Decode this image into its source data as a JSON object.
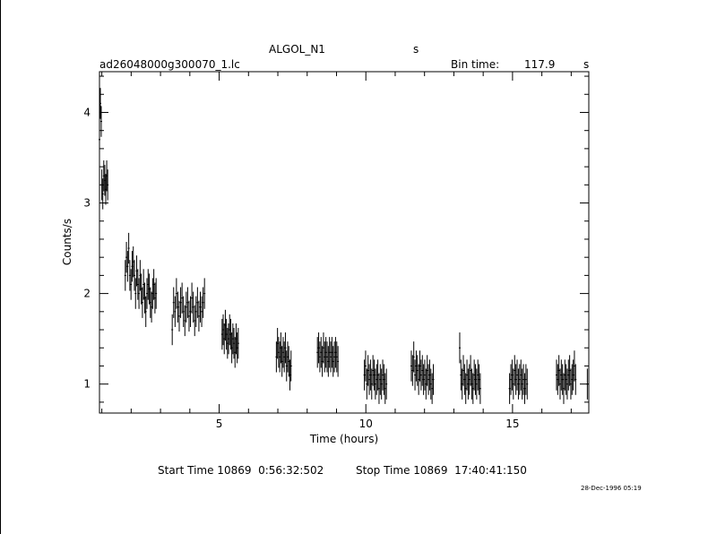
{
  "header": {
    "object_name": "ALGOL_N1",
    "object_unit": "s",
    "file_name": "ad26048000g300070_1.lc",
    "bin_time_label": "Bin time:",
    "bin_time_value": "117.9",
    "bin_time_unit": "s"
  },
  "footer": {
    "start_label": "Start Time 10869  0:56:32:502",
    "stop_label": "Stop Time 10869  17:40:41:150",
    "timestamp": "28-Dec-1996 05:19"
  },
  "chart_data": {
    "type": "scatter",
    "xlabel": "Time (hours)",
    "ylabel": "Counts/s",
    "xlim": [
      0.92,
      17.6
    ],
    "ylim": [
      0.68,
      4.45
    ],
    "xticks": [
      5,
      10,
      15
    ],
    "yticks": [
      1,
      2,
      3,
      4
    ],
    "grid": false,
    "error_bars": true,
    "series": [
      {
        "segments": [
          {
            "x_start": 0.92,
            "x_end": 0.98,
            "values": [
              3.7,
              4.1,
              3.9
            ]
          },
          {
            "x_start": 1.0,
            "x_end": 1.2,
            "values": [
              3.2,
              3.1,
              3.3,
              3.25,
              3.15,
              3.3,
              3.2
            ]
          },
          {
            "x_start": 1.8,
            "x_end": 2.85,
            "values": [
              2.2,
              2.4,
              2.3,
              2.5,
              2.2,
              2.1,
              2.3,
              2.35,
              2.2,
              2.0,
              2.25,
              2.1,
              2.0,
              2.2,
              2.05,
              1.9,
              2.1,
              1.95,
              1.8,
              2.0,
              2.1,
              2.05,
              1.9,
              1.85,
              2.0,
              2.1,
              1.95,
              2.0
            ]
          },
          {
            "x_start": 3.4,
            "x_end": 4.5,
            "values": [
              1.6,
              1.9,
              1.8,
              2.0,
              1.85,
              1.75,
              1.9,
              1.95,
              1.8,
              1.7,
              1.85,
              1.9,
              1.75,
              1.8,
              1.95,
              1.85,
              1.7,
              1.8,
              1.9,
              1.75,
              1.85,
              1.8,
              1.9,
              2.0
            ]
          },
          {
            "x_start": 5.1,
            "x_end": 5.65,
            "values": [
              1.55,
              1.6,
              1.5,
              1.65,
              1.55,
              1.45,
              1.5,
              1.6,
              1.55,
              1.4,
              1.5,
              1.45,
              1.35,
              1.5,
              1.4,
              1.45
            ]
          },
          {
            "x_start": 6.95,
            "x_end": 7.45,
            "values": [
              1.3,
              1.45,
              1.35,
              1.3,
              1.4,
              1.25,
              1.35,
              1.3,
              1.4,
              1.2,
              1.3,
              1.25,
              1.1,
              1.2
            ]
          },
          {
            "x_start": 8.35,
            "x_end": 9.05,
            "values": [
              1.35,
              1.4,
              1.3,
              1.35,
              1.25,
              1.4,
              1.3,
              1.35,
              1.3,
              1.25,
              1.35,
              1.3,
              1.35,
              1.25,
              1.3,
              1.35,
              1.3,
              1.25
            ]
          },
          {
            "x_start": 9.95,
            "x_end": 10.7,
            "values": [
              1.1,
              1.2,
              1.0,
              1.15,
              1.05,
              1.1,
              1.0,
              1.15,
              1.1,
              1.0,
              1.05,
              1.1,
              0.95,
              1.05,
              1.0,
              1.1,
              1.05,
              0.95,
              1.0
            ]
          },
          {
            "x_start": 11.55,
            "x_end": 12.3,
            "values": [
              1.2,
              1.15,
              1.3,
              1.1,
              1.2,
              1.15,
              1.05,
              1.2,
              1.1,
              1.15,
              1.05,
              1.1,
              1.0,
              1.15,
              1.05,
              1.1,
              1.0,
              0.95,
              1.05
            ]
          },
          {
            "x_start": 13.2,
            "x_end": 13.9,
            "values": [
              1.4,
              1.1,
              1.0,
              1.15,
              1.05,
              0.95,
              1.1,
              1.0,
              1.05,
              1.15,
              1.0,
              0.95,
              1.1,
              1.05,
              1.0,
              1.1,
              1.05,
              0.95
            ]
          },
          {
            "x_start": 14.9,
            "x_end": 15.5,
            "values": [
              0.95,
              1.05,
              1.1,
              1.0,
              1.15,
              1.05,
              1.1,
              1.0,
              1.05,
              1.1,
              1.0,
              1.05,
              0.95,
              1.05,
              1.0
            ]
          },
          {
            "x_start": 16.5,
            "x_end": 17.15,
            "values": [
              1.1,
              1.05,
              1.15,
              1.0,
              1.1,
              1.05,
              0.95,
              1.1,
              1.05,
              1.0,
              1.1,
              1.15,
              1.0,
              1.05,
              1.1,
              1.2,
              1.05
            ]
          },
          {
            "x_start": 17.55,
            "x_end": 17.58,
            "values": [
              1.0
            ]
          }
        ],
        "error_half_width": 0.17
      }
    ]
  }
}
